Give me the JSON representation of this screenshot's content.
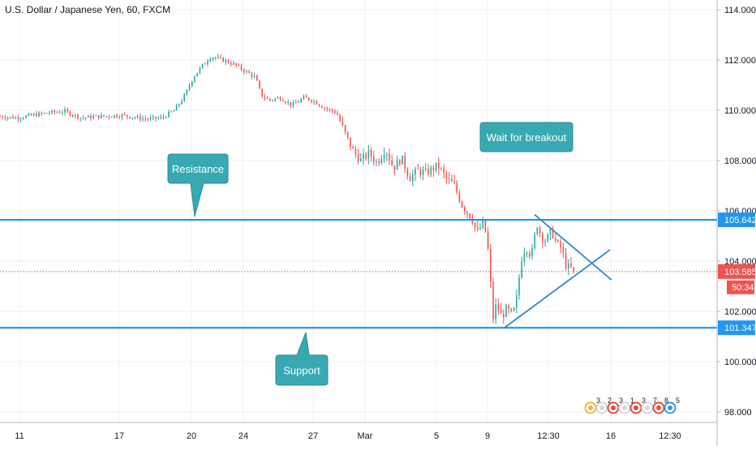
{
  "chart_data": {
    "type": "candlestick",
    "title": "U.S. Dollar / Japanese Yen, 60, FXCM",
    "y_axis": {
      "ticks": [
        114.0,
        112.0,
        110.0,
        108.0,
        106.0,
        104.0,
        102.0,
        100.0,
        98.0
      ],
      "tick_labels": [
        "114.000",
        "112.000",
        "110.000",
        "108.000",
        "106.000",
        "104.000",
        "102.000",
        "100.000",
        "98.000"
      ],
      "range": [
        97.3,
        114.7
      ],
      "position": "right"
    },
    "x_axis": {
      "tick_labels": [
        "11",
        "17",
        "20",
        "24",
        "27",
        "Mar",
        "5",
        "9",
        "12:30",
        "16",
        "12:30"
      ]
    },
    "price_path": [
      [
        0,
        109.75
      ],
      [
        20,
        109.7
      ],
      [
        40,
        109.8
      ],
      [
        60,
        109.9
      ],
      [
        80,
        109.95
      ],
      [
        100,
        109.7
      ],
      [
        120,
        109.75
      ],
      [
        150,
        109.8
      ],
      [
        180,
        109.65
      ],
      [
        200,
        109.7
      ],
      [
        215,
        110.0
      ],
      [
        228,
        110.6
      ],
      [
        238,
        111.3
      ],
      [
        250,
        111.8
      ],
      [
        260,
        112.15
      ],
      [
        275,
        112.0
      ],
      [
        290,
        111.8
      ],
      [
        300,
        111.6
      ],
      [
        315,
        111.3
      ],
      [
        322,
        110.6
      ],
      [
        332,
        110.4
      ],
      [
        345,
        110.5
      ],
      [
        360,
        110.2
      ],
      [
        375,
        110.5
      ],
      [
        385,
        110.4
      ],
      [
        400,
        110.1
      ],
      [
        415,
        109.9
      ],
      [
        425,
        109.1
      ],
      [
        435,
        108.4
      ],
      [
        445,
        108.0
      ],
      [
        455,
        108.3
      ],
      [
        465,
        107.9
      ],
      [
        475,
        108.5
      ],
      [
        485,
        107.7
      ],
      [
        495,
        108.1
      ],
      [
        505,
        107.3
      ],
      [
        515,
        107.6
      ],
      [
        525,
        107.5
      ],
      [
        540,
        107.8
      ],
      [
        550,
        107.3
      ],
      [
        560,
        107.0
      ],
      [
        570,
        106.2
      ],
      [
        582,
        105.7
      ],
      [
        588,
        105.1
      ],
      [
        595,
        105.5
      ],
      [
        600,
        105.0
      ],
      [
        604,
        103.6
      ],
      [
        607,
        101.6
      ],
      [
        612,
        102.3
      ],
      [
        618,
        101.8
      ],
      [
        625,
        102.1
      ],
      [
        632,
        101.8
      ],
      [
        638,
        102.7
      ],
      [
        642,
        104.0
      ],
      [
        648,
        104.6
      ],
      [
        655,
        104.2
      ],
      [
        662,
        105.5
      ],
      [
        667,
        105.0
      ],
      [
        673,
        104.8
      ],
      [
        680,
        105.2
      ],
      [
        686,
        104.7
      ],
      [
        692,
        104.5
      ],
      [
        698,
        103.8
      ],
      [
        704,
        103.7
      ],
      [
        710,
        103.585
      ]
    ],
    "current_price": 103.585,
    "current_price_label": "103.585",
    "countdown_label": "50:34",
    "levels": [
      {
        "price": 105.642,
        "label": "105.642",
        "kind": "resistance"
      },
      {
        "price": 101.347,
        "label": "101.347",
        "kind": "support"
      }
    ],
    "annotations": [
      {
        "text": "Resistance",
        "anchor_price": 105.642
      },
      {
        "text": "Support",
        "anchor_price": 101.347
      },
      {
        "text": "Wait for breakout"
      }
    ],
    "triangle_pattern": {
      "upper": {
        "from_price": 105.85,
        "to_price": 103.25
      },
      "lower": {
        "from_price": 101.35,
        "to_price": 104.45
      }
    },
    "event_markers": [
      "3",
      "2",
      "3",
      "1",
      "3",
      "7",
      "8",
      "5"
    ],
    "colors": {
      "up": "#26a69a",
      "down": "#ef5350",
      "level_line": "#2196f3",
      "trendline": "#2e86c1",
      "callout_bg": "#38a9b3",
      "callout_border": "#2a8b93",
      "price_badge": "#ef5350",
      "grid": "#eef0f3"
    }
  }
}
